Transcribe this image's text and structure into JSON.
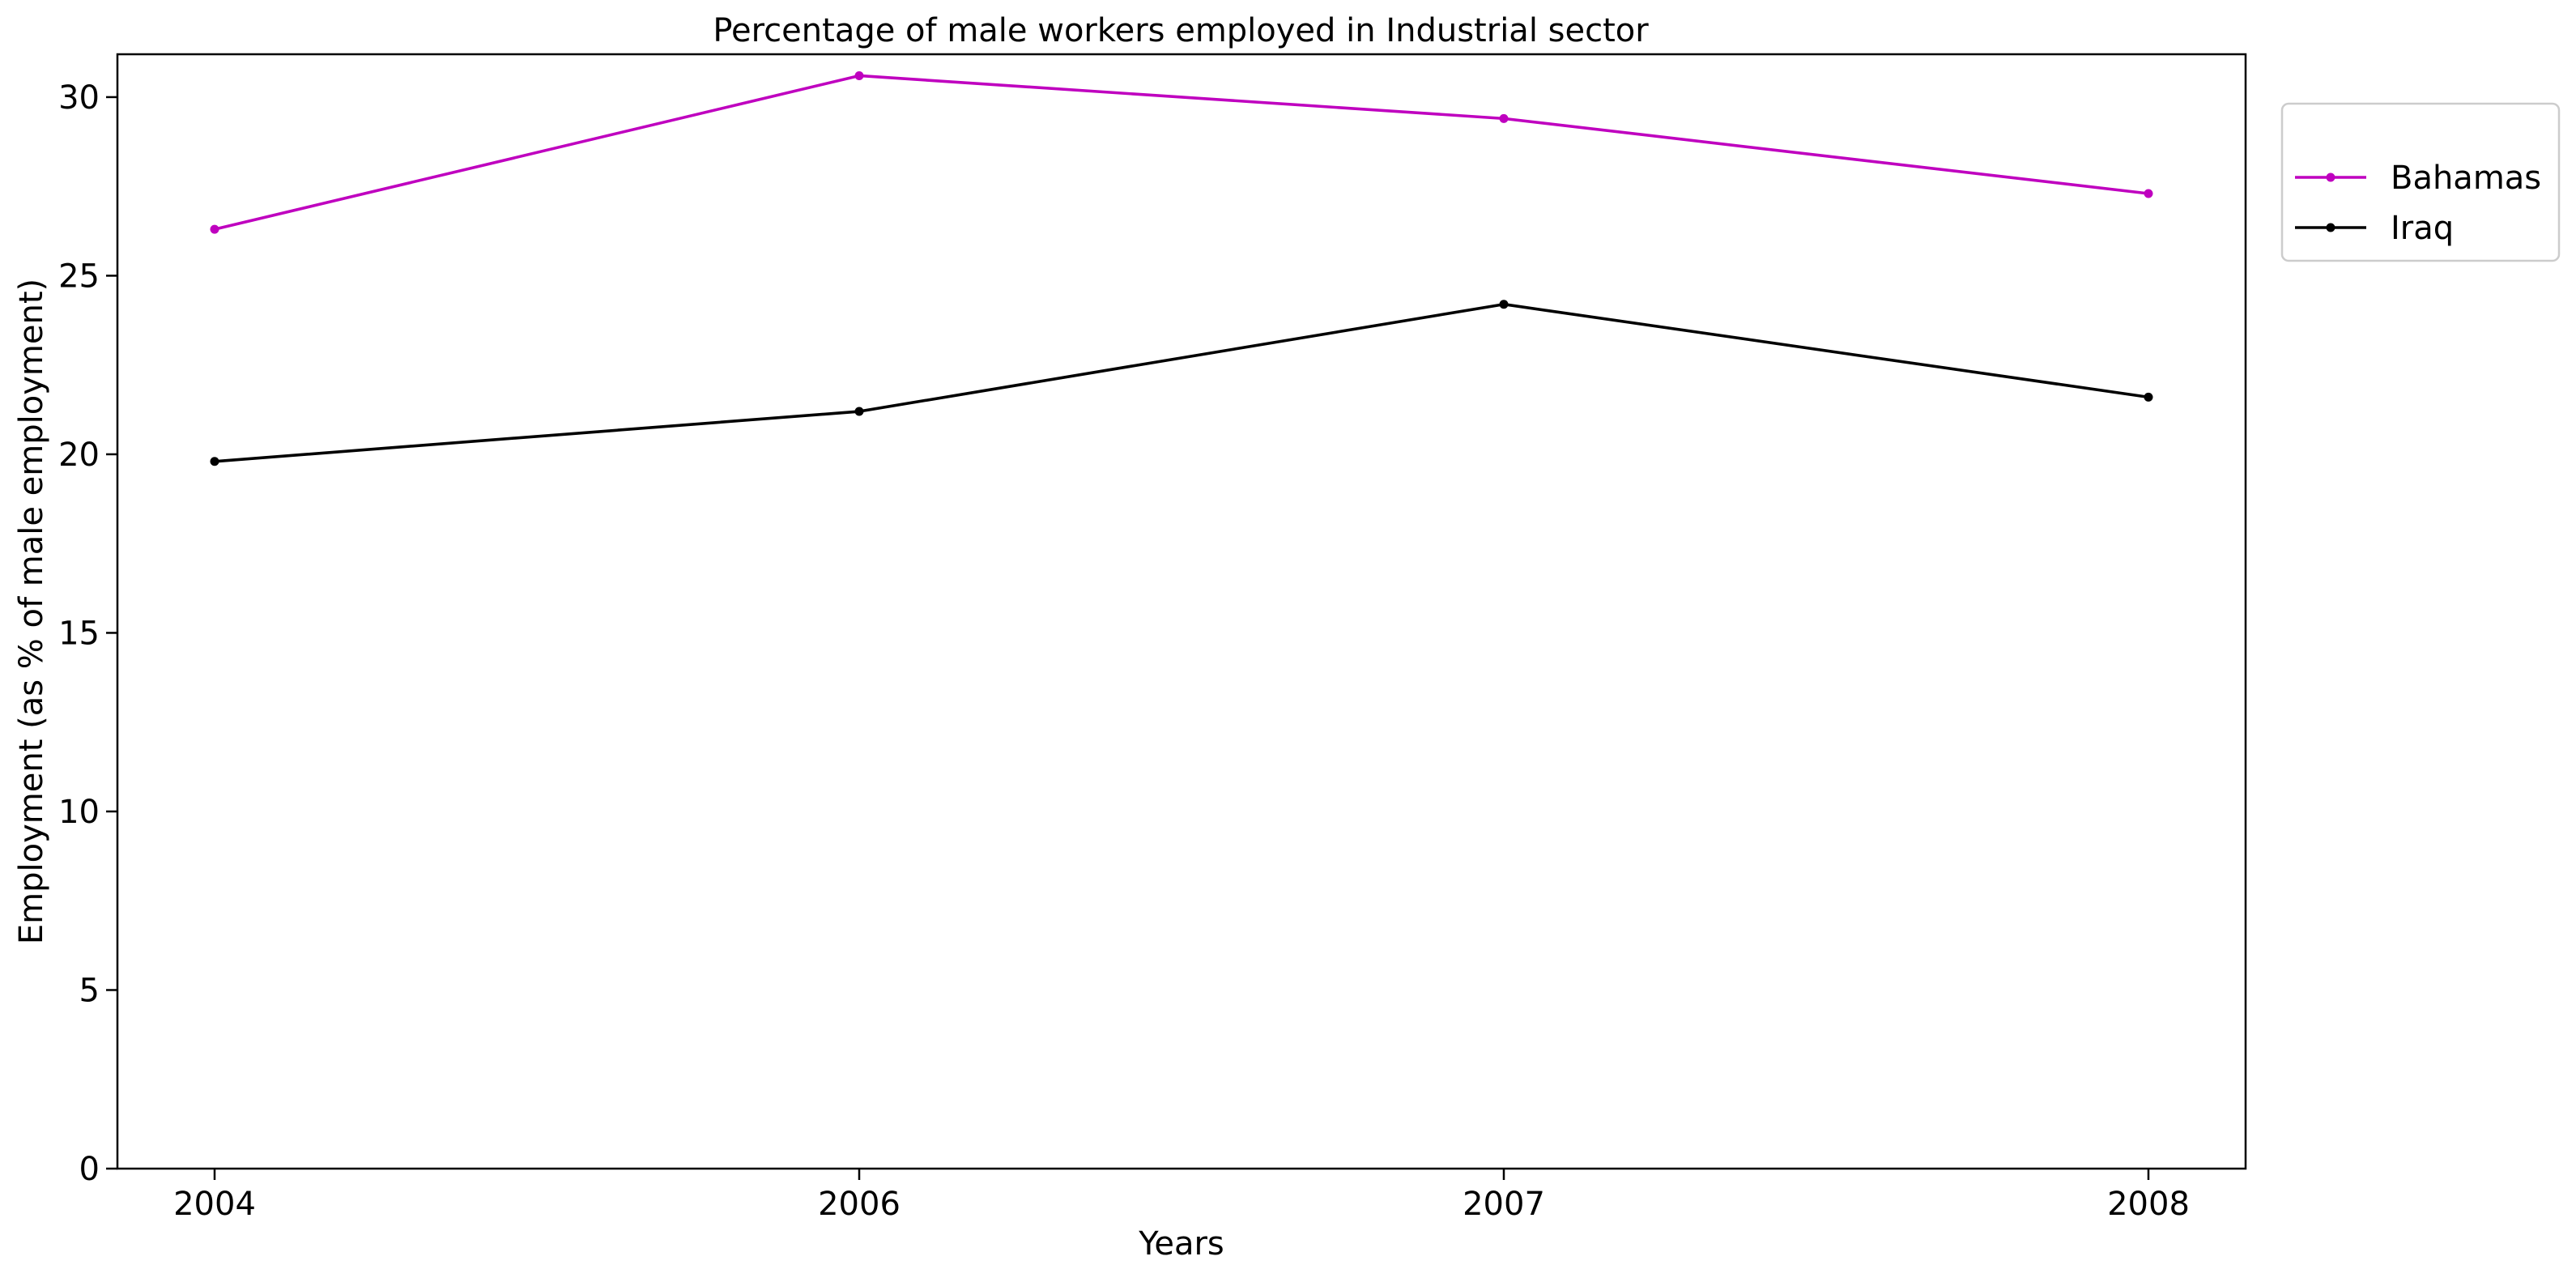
{
  "chart_data": {
    "type": "line",
    "title": "Percentage of male workers employed in Industrial sector",
    "xlabel": "Years",
    "ylabel": "Employment (as % of male employment)",
    "categories": [
      "2004",
      "2006",
      "2007",
      "2008"
    ],
    "ylim": [
      0,
      31.2
    ],
    "yticks": [
      0,
      5,
      10,
      15,
      20,
      25,
      30
    ],
    "grid": false,
    "legend_position": "outside-top-right",
    "series": [
      {
        "name": "Bahamas",
        "color": "#bf00bf",
        "marker": "circle",
        "values": [
          26.3,
          30.6,
          29.4,
          27.3
        ]
      },
      {
        "name": "Iraq",
        "color": "#000000",
        "marker": "circle",
        "values": [
          19.8,
          21.2,
          24.2,
          21.6
        ]
      }
    ]
  }
}
